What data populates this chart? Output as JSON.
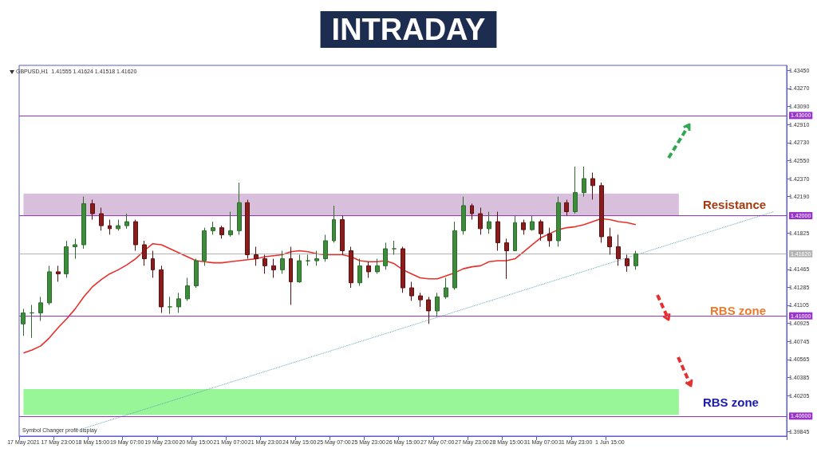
{
  "chart_data": {
    "type": "candlestick",
    "title": "INTRADAY",
    "subtitle": "GBPUSD,H1  1.41555 1.41624 1.41518 1.41620",
    "categories": [
      "17 May 2021",
      null,
      null,
      null,
      "17 May 23:00",
      null,
      null,
      null,
      "18 May 15:00",
      null,
      null,
      null,
      "19 May 07:00",
      null,
      null,
      null,
      "19 May 23:00",
      null,
      null,
      null,
      "20 May 15:00",
      null,
      null,
      null,
      "21 May 07:00",
      null,
      null,
      null,
      "21 May 23:00",
      null,
      null,
      null,
      "24 May 15:00",
      null,
      null,
      null,
      "25 May 07:00",
      null,
      null,
      null,
      "25 May 23:00",
      null,
      null,
      null,
      "26 May 15:00",
      null,
      null,
      null,
      "27 May 07:00",
      null,
      null,
      null,
      "27 May 23:00",
      null,
      null,
      null,
      "28 May 15:00",
      null,
      null,
      null,
      "31 May 07:00",
      null,
      null,
      null,
      "31 May 23:00",
      null,
      null,
      null,
      "1 Jun 15:00",
      null,
      null,
      null,
      null,
      null,
      null,
      null,
      null,
      null,
      null,
      null,
      null,
      null,
      null,
      null,
      null,
      null,
      null,
      null,
      null
    ],
    "ohlc": [
      [
        1.4092,
        1.4107,
        1.408,
        1.4103
      ],
      [
        1.4103,
        1.4111,
        1.4078,
        1.4103
      ],
      [
        1.4103,
        1.4119,
        1.4095,
        1.4113
      ],
      [
        1.4113,
        1.415,
        1.4111,
        1.4144
      ],
      [
        1.4144,
        1.415,
        1.4134,
        1.4142
      ],
      [
        1.4142,
        1.4175,
        1.4138,
        1.4169
      ],
      [
        1.4169,
        1.4177,
        1.4157,
        1.4171
      ],
      [
        1.4171,
        1.4219,
        1.4167,
        1.4212
      ],
      [
        1.4212,
        1.4216,
        1.4196,
        1.4202
      ],
      [
        1.4202,
        1.4208,
        1.4185,
        1.419
      ],
      [
        1.419,
        1.4196,
        1.4181,
        1.4187
      ],
      [
        1.4187,
        1.4196,
        1.4185,
        1.419
      ],
      [
        1.419,
        1.4202,
        1.4187,
        1.4194
      ],
      [
        1.4194,
        1.4196,
        1.4165,
        1.4171
      ],
      [
        1.4171,
        1.4175,
        1.415,
        1.4157
      ],
      [
        1.4157,
        1.4165,
        1.4138,
        1.4146
      ],
      [
        1.4146,
        1.415,
        1.4103,
        1.4109
      ],
      [
        1.4109,
        1.4119,
        1.4102,
        1.4109
      ],
      [
        1.4109,
        1.4123,
        1.4103,
        1.4117
      ],
      [
        1.4117,
        1.4138,
        1.4115,
        1.413
      ],
      [
        1.413,
        1.4157,
        1.4128,
        1.4155
      ],
      [
        1.4155,
        1.4188,
        1.415,
        1.4185
      ],
      [
        1.4185,
        1.4194,
        1.4181,
        1.4188
      ],
      [
        1.4188,
        1.419,
        1.4177,
        1.4181
      ],
      [
        1.4181,
        1.4204,
        1.4179,
        1.4185
      ],
      [
        1.4185,
        1.4233,
        1.4181,
        1.4213
      ],
      [
        1.4213,
        1.4216,
        1.4157,
        1.4161
      ],
      [
        1.4161,
        1.4169,
        1.415,
        1.4157
      ],
      [
        1.4157,
        1.4161,
        1.4142,
        1.415
      ],
      [
        1.415,
        1.4157,
        1.4138,
        1.4146
      ],
      [
        1.4146,
        1.4165,
        1.4142,
        1.4157
      ],
      [
        1.4157,
        1.4169,
        1.4111,
        1.4134
      ],
      [
        1.4134,
        1.4161,
        1.4133,
        1.4155
      ],
      [
        1.4155,
        1.4161,
        1.415,
        1.4155
      ],
      [
        1.4155,
        1.4165,
        1.415,
        1.4157
      ],
      [
        1.4157,
        1.4181,
        1.4154,
        1.4175
      ],
      [
        1.4175,
        1.421,
        1.4173,
        1.4196
      ],
      [
        1.4196,
        1.42,
        1.4161,
        1.4165
      ],
      [
        1.4165,
        1.4169,
        1.4128,
        1.4133
      ],
      [
        1.4133,
        1.4157,
        1.413,
        1.415
      ],
      [
        1.415,
        1.4154,
        1.4138,
        1.4144
      ],
      [
        1.4144,
        1.4157,
        1.4142,
        1.415
      ],
      [
        1.415,
        1.4173,
        1.4146,
        1.4167
      ],
      [
        1.4167,
        1.4175,
        1.4161,
        1.4167
      ],
      [
        1.4167,
        1.4169,
        1.4123,
        1.4128
      ],
      [
        1.4128,
        1.4134,
        1.4115,
        1.412
      ],
      [
        1.412,
        1.4123,
        1.4109,
        1.4116
      ],
      [
        1.4116,
        1.4119,
        1.4092,
        1.4105
      ],
      [
        1.4105,
        1.4123,
        1.4099,
        1.4119
      ],
      [
        1.4119,
        1.4138,
        1.4117,
        1.4128
      ],
      [
        1.4128,
        1.4194,
        1.4126,
        1.4185
      ],
      [
        1.4185,
        1.4219,
        1.4181,
        1.421
      ],
      [
        1.421,
        1.4212,
        1.4196,
        1.4202
      ],
      [
        1.4202,
        1.4208,
        1.4181,
        1.4187
      ],
      [
        1.4187,
        1.4204,
        1.4182,
        1.4194
      ],
      [
        1.4194,
        1.4204,
        1.4165,
        1.4173
      ],
      [
        1.4173,
        1.4177,
        1.4137,
        1.4165
      ],
      [
        1.4165,
        1.42,
        1.4165,
        1.4193
      ],
      [
        1.4193,
        1.4196,
        1.4181,
        1.4186
      ],
      [
        1.4186,
        1.42,
        1.4185,
        1.4194
      ],
      [
        1.4194,
        1.4196,
        1.4175,
        1.4182
      ],
      [
        1.4182,
        1.4188,
        1.4169,
        1.4175
      ],
      [
        1.4175,
        1.4219,
        1.4169,
        1.4213
      ],
      [
        1.4213,
        1.4216,
        1.42,
        1.4204
      ],
      [
        1.4204,
        1.4249,
        1.4202,
        1.4223
      ],
      [
        1.4223,
        1.4249,
        1.4219,
        1.4237
      ],
      [
        1.4237,
        1.4243,
        1.4216,
        1.423
      ],
      [
        1.423,
        1.4233,
        1.4173,
        1.4179
      ],
      [
        1.4179,
        1.4188,
        1.4161,
        1.4169
      ],
      [
        1.4169,
        1.4181,
        1.415,
        1.4157
      ],
      [
        1.4157,
        1.4161,
        1.4144,
        1.415
      ],
      [
        1.415,
        1.4165,
        1.4146,
        1.4162
      ],
      null,
      null,
      null,
      null,
      null,
      null,
      null,
      null,
      null,
      null,
      null,
      null,
      null,
      null,
      null,
      null,
      null
    ],
    "series": [
      {
        "type": "line",
        "color": "#e8302a",
        "line_style": "solid",
        "values": [
          1.4063,
          1.4066,
          1.407,
          1.4078,
          1.4088,
          1.4097,
          1.4107,
          1.4119,
          1.4129,
          1.4136,
          1.4142,
          1.4146,
          1.4151,
          1.4157,
          1.4165,
          1.4172,
          1.4171,
          1.4167,
          1.4163,
          1.4159,
          1.4155,
          1.4154,
          1.4153,
          1.4153,
          1.4154,
          1.4155,
          1.4156,
          1.4157,
          1.4159,
          1.416,
          1.4161,
          1.4164,
          1.4165,
          1.4164,
          1.4162,
          1.4161,
          1.4161,
          1.4161,
          1.4159,
          1.4155,
          1.4154,
          1.4154,
          1.4155,
          1.4152,
          1.4146,
          1.4142,
          1.4138,
          1.4137,
          1.4137,
          1.414,
          1.4143,
          1.4147,
          1.4149,
          1.415,
          1.4154,
          1.4155,
          1.4155,
          1.4157,
          1.4164,
          1.4171,
          1.4178,
          1.4182,
          1.4186,
          1.4188,
          1.4189,
          1.4191,
          1.4194,
          1.4197,
          1.4196,
          1.4194,
          1.4193,
          1.4191,
          null,
          null,
          null,
          null,
          null,
          null,
          null,
          null,
          null,
          null,
          null,
          null,
          null,
          null,
          null,
          null,
          null
        ]
      },
      {
        "type": "line",
        "color": "#5fa3b8",
        "line_style": "dotted",
        "values": [
          null,
          null,
          null,
          null,
          null,
          null,
          1.3985,
          null,
          null,
          null,
          null,
          null,
          null,
          null,
          null,
          null,
          null,
          null,
          null,
          null,
          null,
          null,
          null,
          null,
          null,
          null,
          null,
          null,
          null,
          null,
          null,
          null,
          null,
          null,
          null,
          null,
          null,
          null,
          null,
          null,
          null,
          null,
          null,
          null,
          null,
          null,
          null,
          null,
          null,
          null,
          null,
          null,
          null,
          null,
          null,
          null,
          null,
          null,
          null,
          null,
          null,
          null,
          null,
          null,
          null,
          null,
          null,
          null,
          null,
          null,
          null,
          null,
          null,
          null,
          null,
          null,
          null,
          null,
          null,
          null,
          null,
          null,
          null,
          null,
          null,
          null,
          null,
          1.4204,
          null
        ]
      }
    ],
    "marker": "none",
    "ylim": [
      1.398,
      1.435
    ],
    "yticks": [
      {
        "value": 1.4345,
        "label": "1.43450"
      },
      {
        "value": 1.4327,
        "label": "1.43270"
      },
      {
        "value": 1.4309,
        "label": "1.43090"
      },
      {
        "value": 1.4291,
        "label": "1.42910"
      },
      {
        "value": 1.4273,
        "label": "1.42730"
      },
      {
        "value": 1.4255,
        "label": "1.42550"
      },
      {
        "value": 1.4237,
        "label": "1.42370"
      },
      {
        "value": 1.4219,
        "label": "1.42190"
      },
      1.41825,
      1.41465,
      1.41285,
      1.41105,
      1.40925,
      1.40745,
      1.40565,
      1.40385,
      1.40205,
      1.39845
    ],
    "ref_lines": [
      {
        "axis": "y",
        "value": 1.43,
        "label": "1.43000",
        "color": "#9933cc"
      },
      {
        "axis": "y",
        "value": 1.42,
        "label": "1.42000",
        "color": "#9933cc"
      },
      {
        "axis": "y",
        "value": 1.4162,
        "label": "1.41620",
        "color": "#b4b4b4"
      },
      {
        "axis": "y",
        "value": 1.41,
        "label": "1.41000",
        "color": "#9933cc"
      },
      {
        "axis": "y",
        "value": 1.4,
        "label": "1.40000",
        "color": "#9933cc"
      }
    ],
    "bands": [
      {
        "axis": "y",
        "from": 1.42,
        "to": 1.4222,
        "label": "Resistance",
        "color": "#d8bfdc"
      },
      {
        "axis": "y",
        "from": 1.4001,
        "to": 1.4027,
        "label": "RBS zone",
        "color": "#98f598"
      }
    ],
    "annotations": [
      "RBS zone",
      "Symbol Changer profit display"
    ],
    "grid": false
  }
}
